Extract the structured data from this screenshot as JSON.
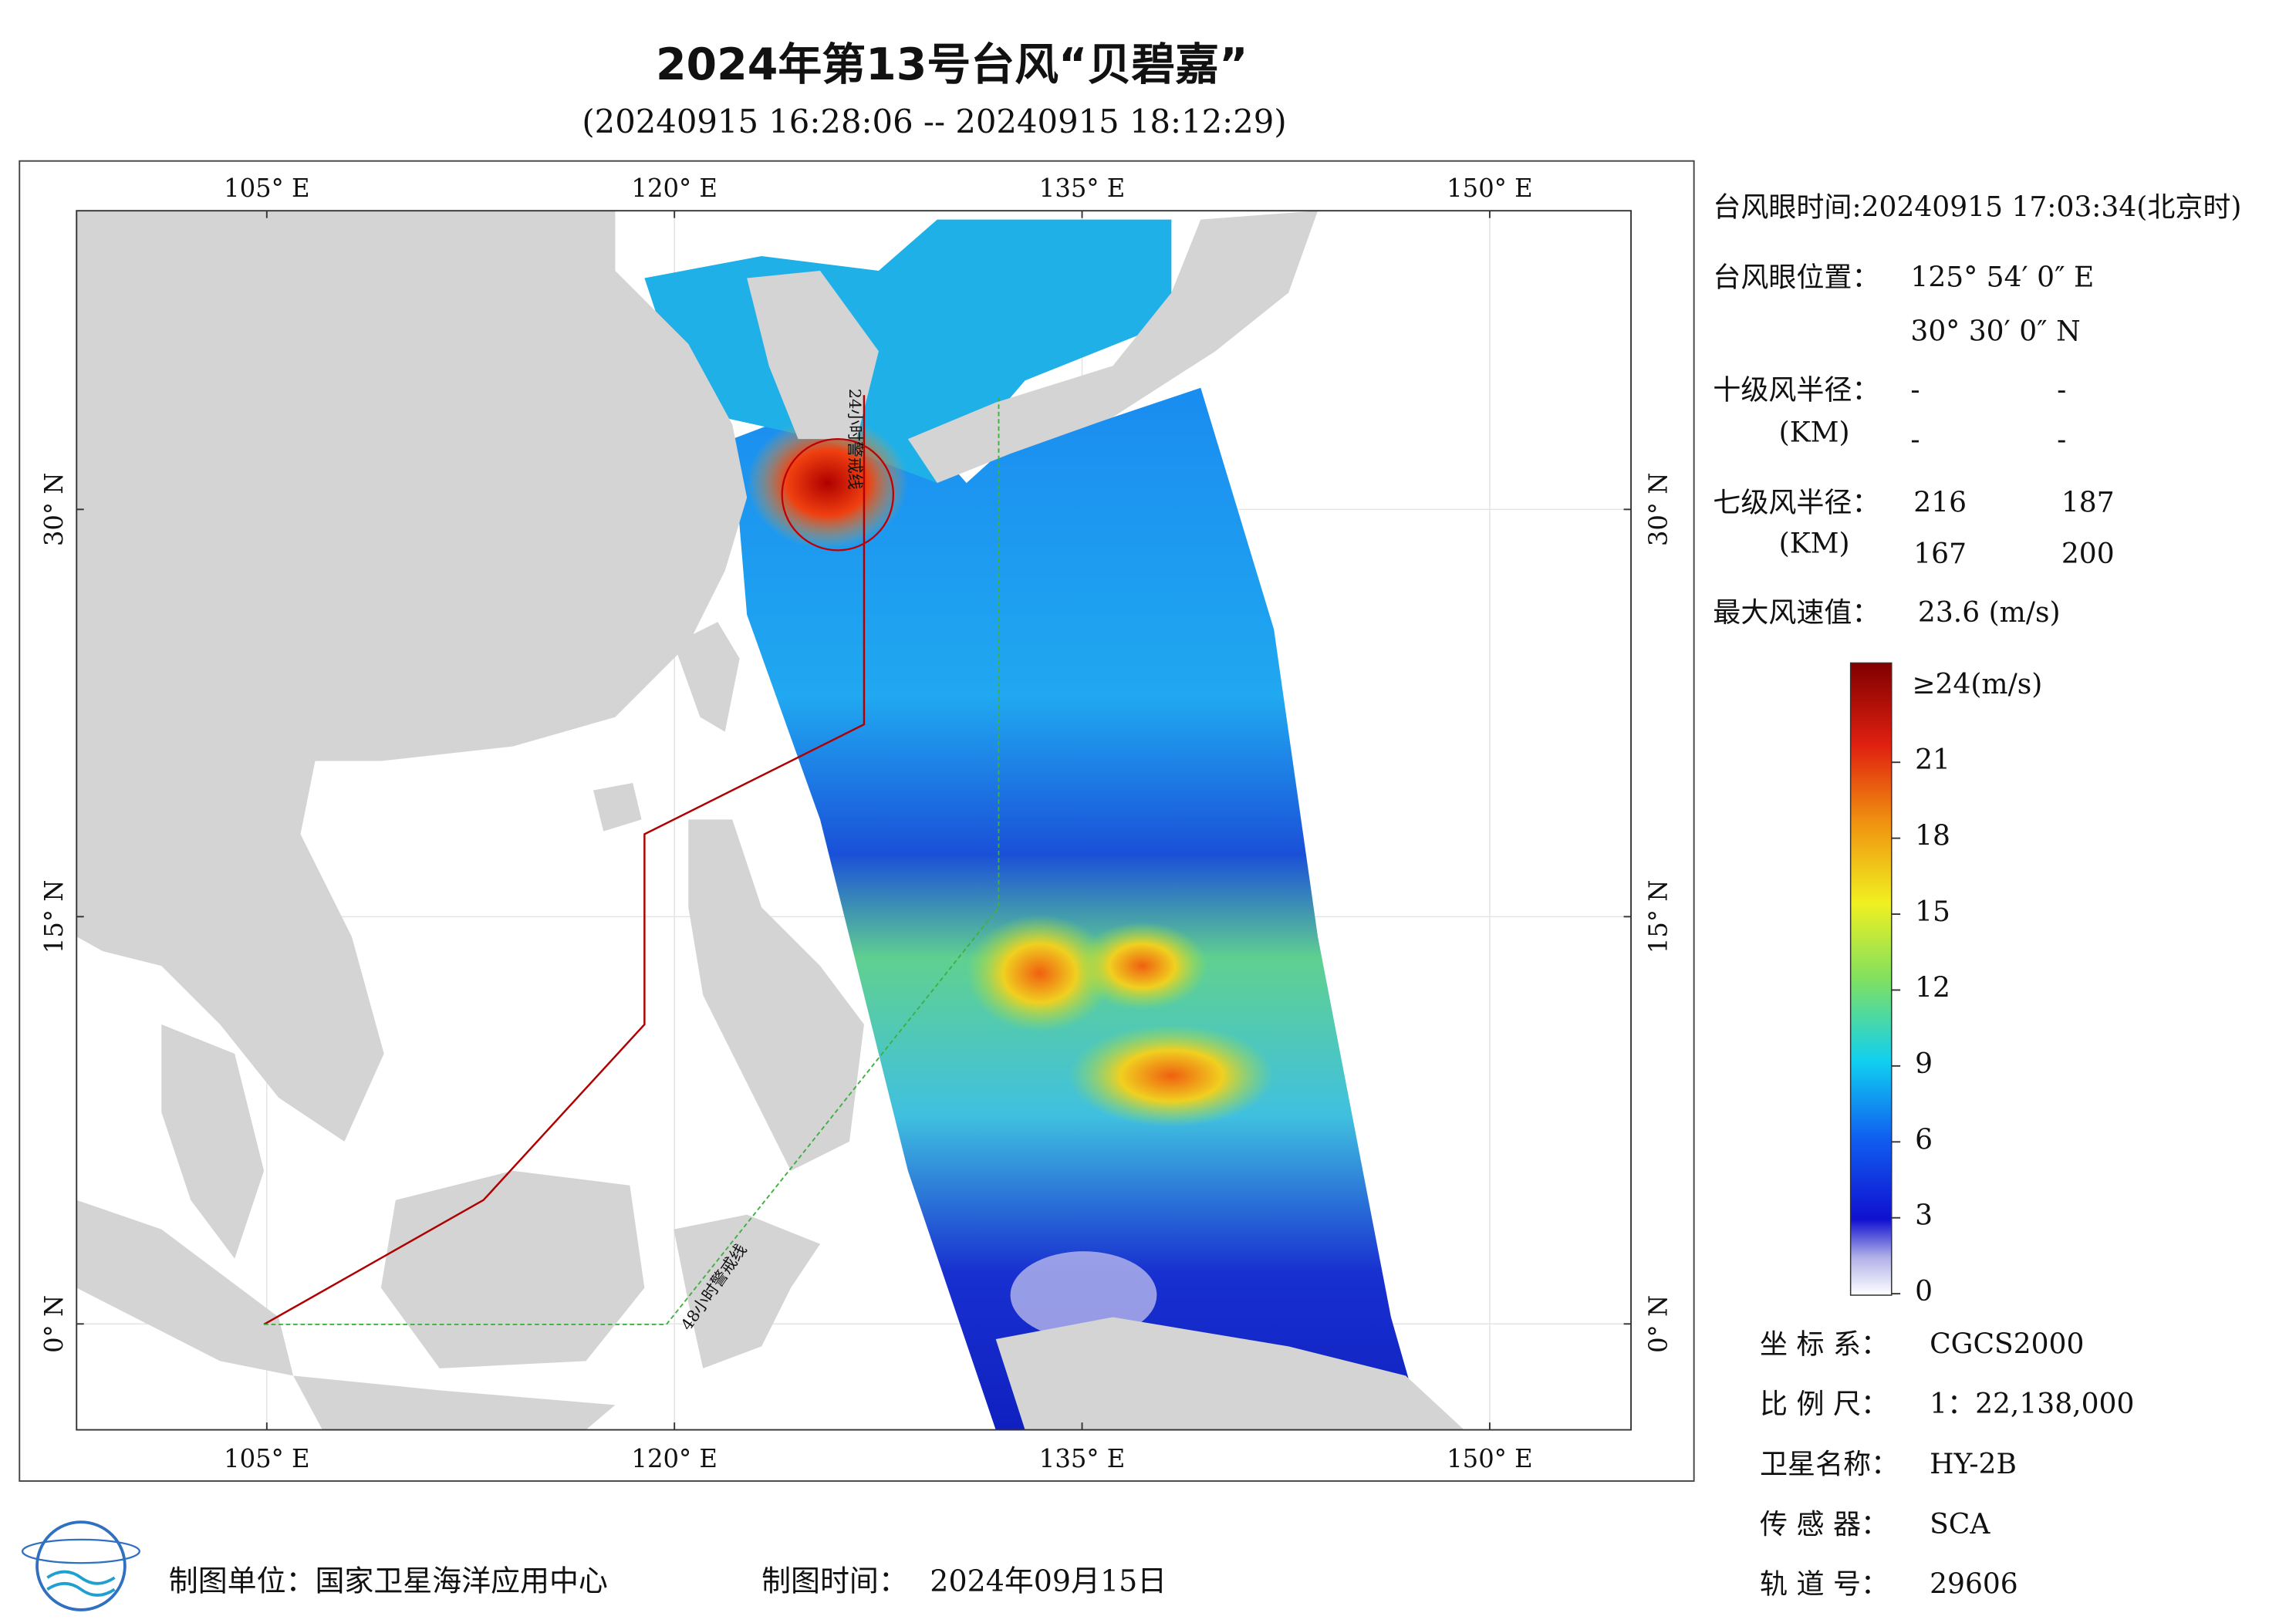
{
  "header": {
    "title": "2024年第13号台风“贝碧嘉”",
    "subtitle": "(20240915 16:28:06 -- 20240915 18:12:29)"
  },
  "map": {
    "lonlim": [
      98,
      155.2
    ],
    "latlim": [
      -3.9,
      41
    ],
    "lon_ticks": [
      {
        "value": 105,
        "label": "105° E"
      },
      {
        "value": 120,
        "label": "120° E"
      },
      {
        "value": 135,
        "label": "135° E"
      },
      {
        "value": 150,
        "label": "150° E"
      }
    ],
    "lat_ticks": [
      {
        "value": 0,
        "label": "0° N"
      },
      {
        "value": 15,
        "label": "15° N"
      },
      {
        "value": 30,
        "label": "30° N"
      }
    ],
    "warning_24h": "24小时警戒线",
    "warning_48h": "48小时警戒线"
  },
  "info": {
    "eye_time": "台风眼时间:20240915 17:03:34(北京时)",
    "eye_position": {
      "label": "台风眼位置：",
      "lon": "125° 54′ 0″ E",
      "lat": "30° 30′ 0″ N"
    },
    "radius_10": {
      "label": "十级风半径：",
      "unit": "(KM)",
      "values": [
        "-",
        "-",
        "-",
        "-"
      ]
    },
    "radius_7": {
      "label": "七级风半径：",
      "unit": "(KM)",
      "values": [
        216,
        187,
        167,
        200
      ]
    },
    "max_wind": {
      "label": "最大风速值：",
      "value": "23.6  (m/s)"
    }
  },
  "colorbar": {
    "lim": [
      0,
      24
    ],
    "max_label": "≥24(m/s)",
    "ticks": [
      0,
      3,
      6,
      9,
      12,
      15,
      18,
      21
    ]
  },
  "meta": [
    {
      "label": "坐 标 系：",
      "value": "CGCS2000"
    },
    {
      "label": "比 例 尺：",
      "value": "1：22,138,000"
    },
    {
      "label": "卫星名称：",
      "value": "HY-2B"
    },
    {
      "label": "传 感 器：",
      "value": "SCA"
    },
    {
      "label": "轨 道 号：",
      "value": "29606"
    }
  ],
  "footer": {
    "unit_label": "制图单位：国家卫星海洋应用中心",
    "time_label": "制图时间：",
    "time_value": "2024年09月15日"
  }
}
